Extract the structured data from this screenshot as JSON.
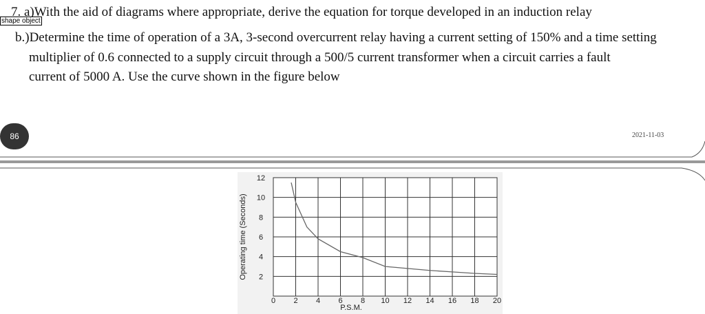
{
  "question": {
    "part_a": "7. a)With the aid of diagrams where appropriate, derive the equation for torque developed in an induction relay",
    "part_b_lines": [
      "b.)Determine the time of operation of a 3A, 3-second overcurrent relay having a current setting of 150% and a time setting",
      "multiplier of 0.6 connected to a supply circuit through a 500/5 current transformer when a circuit carries a fault",
      "current of 5000 A. Use the curve shown in the figure below"
    ]
  },
  "shape_label": "shape object",
  "page_number": "86",
  "date": "2021-11-03",
  "chart_data": {
    "type": "line",
    "xlabel": "P.S.M.",
    "ylabel": "Operating time (Seconds)",
    "x": [
      1.6,
      2,
      3,
      4,
      6,
      8,
      10,
      12,
      14,
      16,
      18,
      20
    ],
    "series": [
      {
        "name": null,
        "color": "#666666",
        "values": [
          11.5,
          9.5,
          7,
          5.8,
          4.5,
          3.9,
          3.0,
          2.8,
          2.6,
          2.45,
          2.3,
          2.2
        ]
      }
    ],
    "xlim": [
      0,
      20
    ],
    "xticks": [
      0,
      2,
      4,
      6,
      8,
      10,
      12,
      14,
      16,
      18,
      20
    ],
    "ylim": [
      0,
      12
    ],
    "yticks": [
      2,
      4,
      6,
      8,
      10,
      12
    ],
    "grid": true
  }
}
